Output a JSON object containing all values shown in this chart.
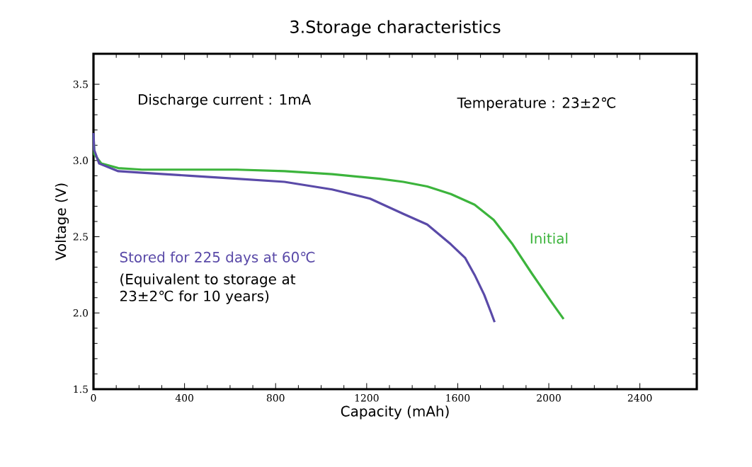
{
  "chart_data": {
    "type": "line",
    "title": "3.Storage characteristics",
    "xlabel": "Capacity (mAh)",
    "ylabel": "Voltage (V)",
    "xlim": [
      0,
      2650
    ],
    "ylim": [
      1.5,
      3.7
    ],
    "xticks": [
      0,
      400,
      800,
      1200,
      1600,
      2000,
      2400
    ],
    "yticks": [
      {
        "value": 1.5,
        "label": "1.5"
      },
      {
        "value": 2.0,
        "label": "2.0"
      },
      {
        "value": 2.5,
        "label": "2.5"
      },
      {
        "value": 3.0,
        "label": "3.0"
      },
      {
        "value": 3.5,
        "label": "3.5"
      }
    ],
    "grid": false,
    "legend": false,
    "marker": "none",
    "line_style": "solid",
    "annotations": [
      "Discharge current : 1mA",
      "Temperature : 23±2℃",
      "(Equivalent to storage at 23±2℃ for 10 years)"
    ],
    "series": [
      {
        "name": "Initial",
        "color": "#3cb43c",
        "x": [
          0,
          4,
          35,
          109,
          213,
          422,
          630,
          839,
          1048,
          1257,
          1361,
          1466,
          1570,
          1674,
          1758,
          1841,
          1925,
          2008,
          2065
        ],
        "values": [
          3.17,
          3.04,
          2.98,
          2.95,
          2.94,
          2.94,
          2.94,
          2.93,
          2.91,
          2.88,
          2.86,
          2.83,
          2.78,
          2.71,
          2.61,
          2.45,
          2.26,
          2.08,
          1.96
        ]
      },
      {
        "name": "Stored for 225 days at 60℃",
        "color": "#5a4aa8",
        "x": [
          0,
          3,
          25,
          109,
          213,
          422,
          630,
          839,
          1048,
          1215,
          1361,
          1466,
          1570,
          1633,
          1674,
          1716,
          1747,
          1762
        ],
        "values": [
          3.18,
          3.07,
          2.98,
          2.93,
          2.92,
          2.9,
          2.88,
          2.86,
          2.81,
          2.75,
          2.65,
          2.58,
          2.45,
          2.36,
          2.25,
          2.12,
          2.0,
          1.94
        ]
      }
    ]
  }
}
